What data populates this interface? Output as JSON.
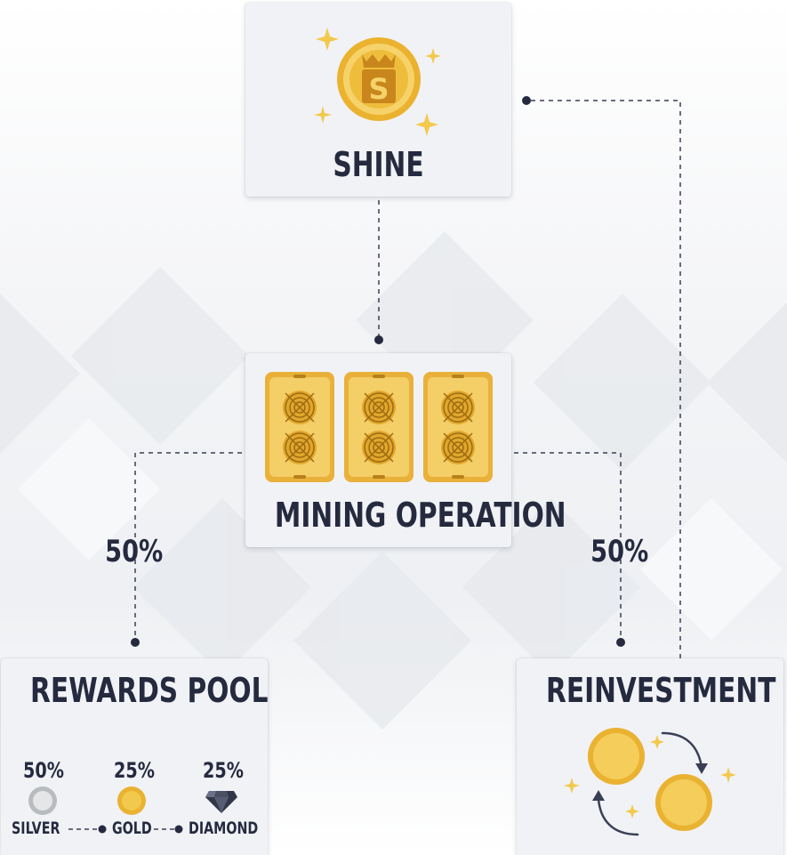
{
  "nodes": {
    "shine": {
      "title": "SHINE"
    },
    "mining": {
      "title": "MINING OPERATION"
    },
    "rewards": {
      "title": "REWARDS POOL"
    },
    "reinvest": {
      "title": "REINVESTMENT"
    }
  },
  "splits": {
    "left": "50%",
    "right": "50%"
  },
  "tiers": [
    {
      "label": "SILVER",
      "percent": "50%",
      "icon": "silver-coin-icon"
    },
    {
      "label": "GOLD",
      "percent": "25%",
      "icon": "gold-coin-icon"
    },
    {
      "label": "DIAMOND",
      "percent": "25%",
      "icon": "diamond-icon"
    }
  ],
  "colors": {
    "text": "#252a3f",
    "gold": "#f2c94c",
    "card": "#f1f2f6"
  }
}
